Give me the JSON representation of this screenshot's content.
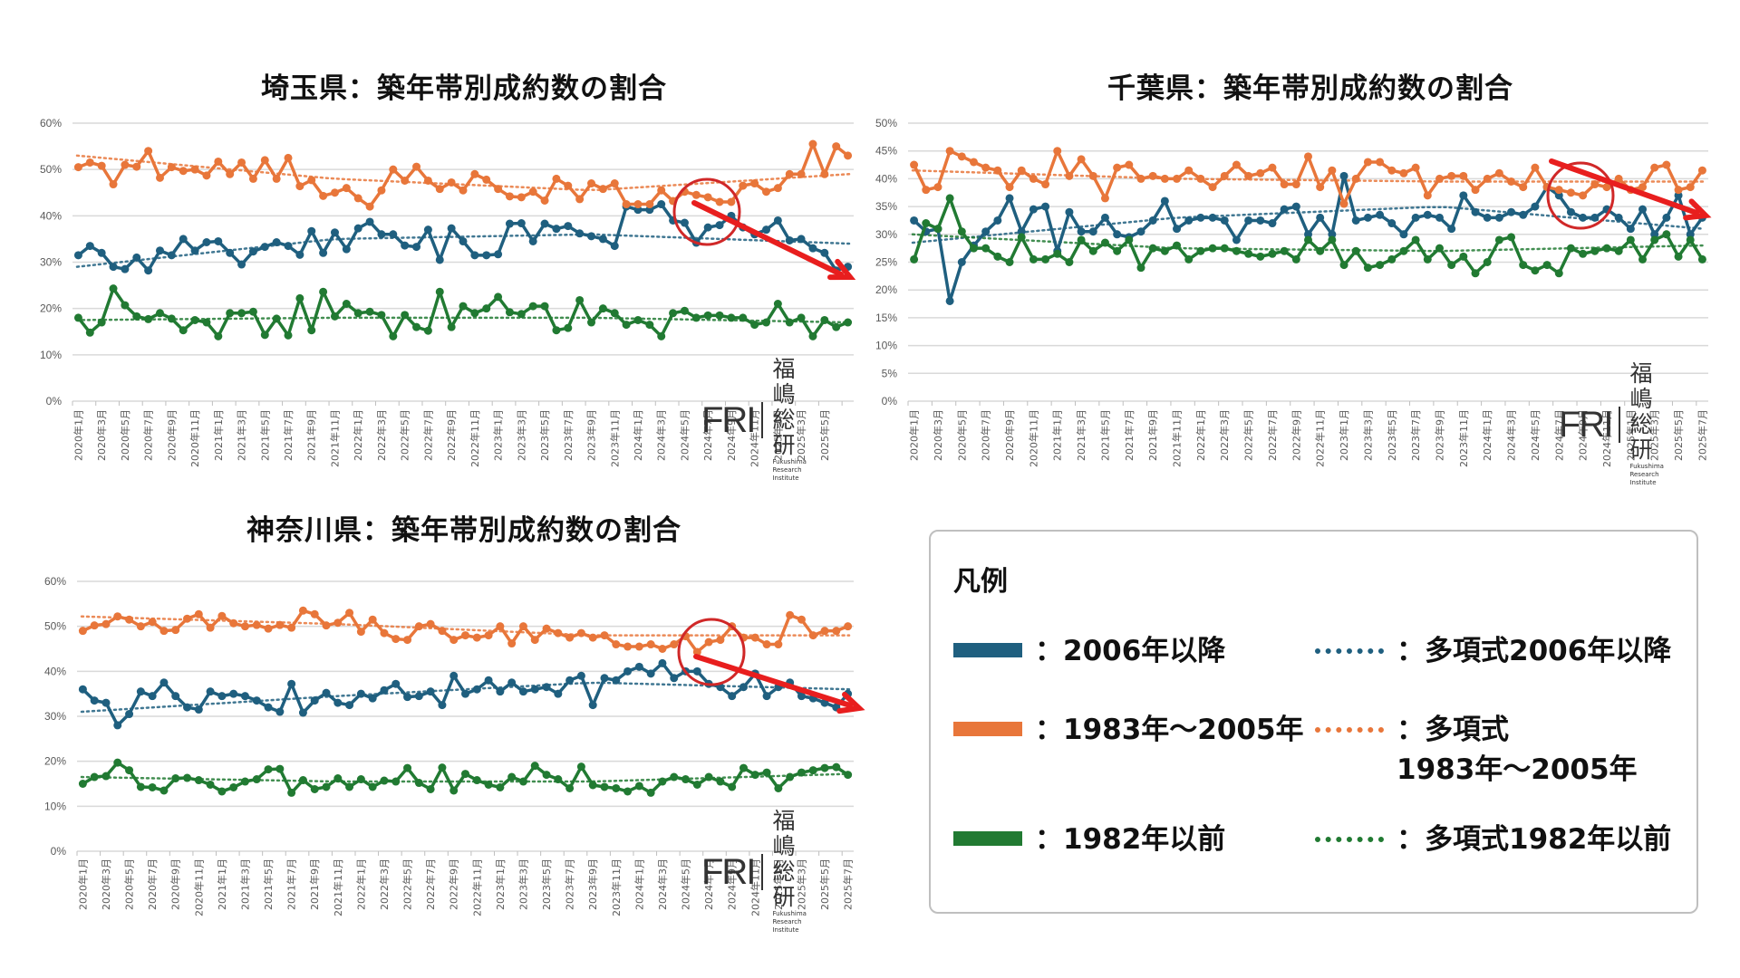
{
  "legend": {
    "title": "凡例",
    "items": [
      {
        "label": "：2006年以降",
        "color": "#1f5f7f",
        "style": "solid"
      },
      {
        "label": "：多項式2006年以降",
        "color": "#1f5f7f",
        "style": "dotted"
      },
      {
        "label": "：1983年～2005年",
        "color": "#e8763a",
        "style": "solid"
      },
      {
        "label": "：多項式\n1983年～2005年",
        "color": "#e8763a",
        "style": "dotted"
      },
      {
        "label": "：1982年以前",
        "color": "#217a32",
        "style": "solid"
      },
      {
        "label": "：多項式1982年以前",
        "color": "#217a32",
        "style": "dotted"
      }
    ]
  },
  "logo": {
    "mark": "FRI",
    "jp": "福嶋総研",
    "en": "Fukushima Research Institute"
  },
  "colors": {
    "post2006": "#1f5f7f",
    "y1983_2005": "#e8763a",
    "pre1982": "#217a32",
    "annotation": "#e02020",
    "grid": "#d9d9d9"
  },
  "chart_data": [
    {
      "type": "line",
      "title": "埼玉県：築年帯別成約数の割合",
      "xlabel": "",
      "ylabel": "",
      "ylim": [
        0,
        0.6
      ],
      "yticks": [
        "0%",
        "10%",
        "20%",
        "30%",
        "40%",
        "50%",
        "60%"
      ],
      "x_start": "2020年1月",
      "x_tick_labels": [
        "2020年1月",
        "2020年3月",
        "2020年5月",
        "2020年7月",
        "2020年9月",
        "2020年11月",
        "2021年1月",
        "2021年3月",
        "2021年5月",
        "2021年7月",
        "2021年9月",
        "2021年11月",
        "2022年1月",
        "2022年3月",
        "2022年5月",
        "2022年7月",
        "2022年9月",
        "2022年11月",
        "2023年1月",
        "2023年3月",
        "2023年5月",
        "2023年7月",
        "2023年9月",
        "2023年11月",
        "2024年1月",
        "2024年3月",
        "2024年5月",
        "2024年7月",
        "2024年9月",
        "2024年11月",
        "2025年1月",
        "2025年3月",
        "2025年5月"
      ],
      "grid": true,
      "trendlines": "polynomial",
      "annotation": "red circle around 2024年5月–7月 with downward red arrow on 2006年以降 series",
      "series": [
        {
          "name": "2006年以降",
          "values": [
            0.315,
            0.335,
            0.32,
            0.29,
            0.285,
            0.31,
            0.282,
            0.325,
            0.315,
            0.35,
            0.325,
            0.343,
            0.345,
            0.32,
            0.295,
            0.323,
            0.333,
            0.343,
            0.335,
            0.316,
            0.367,
            0.32,
            0.364,
            0.328,
            0.373,
            0.387,
            0.36,
            0.36,
            0.336,
            0.333,
            0.37,
            0.305,
            0.373,
            0.345,
            0.315,
            0.315,
            0.317,
            0.383,
            0.384,
            0.345,
            0.383,
            0.372,
            0.378,
            0.362,
            0.356,
            0.35,
            0.335,
            0.42,
            0.413,
            0.413,
            0.425,
            0.39,
            0.385,
            0.342,
            0.375,
            0.38,
            0.4,
            0.375,
            0.36,
            0.37,
            0.39,
            0.347,
            0.35,
            0.33,
            0.32,
            0.282,
            0.29
          ]
        },
        {
          "name": "1983年～2005年",
          "values": [
            0.505,
            0.515,
            0.508,
            0.468,
            0.51,
            0.506,
            0.54,
            0.482,
            0.505,
            0.497,
            0.5,
            0.487,
            0.517,
            0.49,
            0.515,
            0.48,
            0.52,
            0.48,
            0.525,
            0.464,
            0.477,
            0.443,
            0.45,
            0.46,
            0.438,
            0.42,
            0.455,
            0.5,
            0.476,
            0.506,
            0.476,
            0.458,
            0.472,
            0.455,
            0.49,
            0.478,
            0.458,
            0.442,
            0.44,
            0.452,
            0.433,
            0.48,
            0.465,
            0.436,
            0.47,
            0.458,
            0.47,
            0.425,
            0.425,
            0.425,
            0.455,
            0.432,
            0.452,
            0.445,
            0.44,
            0.43,
            0.43,
            0.465,
            0.47,
            0.452,
            0.46,
            0.49,
            0.49,
            0.555,
            0.49,
            0.55,
            0.53
          ]
        },
        {
          "name": "1982年以前",
          "values": [
            0.18,
            0.148,
            0.17,
            0.243,
            0.207,
            0.183,
            0.177,
            0.19,
            0.178,
            0.153,
            0.175,
            0.17,
            0.14,
            0.19,
            0.19,
            0.193,
            0.143,
            0.178,
            0.142,
            0.222,
            0.153,
            0.236,
            0.183,
            0.21,
            0.19,
            0.193,
            0.186,
            0.14,
            0.186,
            0.16,
            0.152,
            0.236,
            0.16,
            0.205,
            0.19,
            0.2,
            0.225,
            0.192,
            0.188,
            0.205,
            0.205,
            0.153,
            0.158,
            0.218,
            0.17,
            0.2,
            0.19,
            0.165,
            0.175,
            0.165,
            0.14,
            0.19,
            0.195,
            0.18,
            0.185,
            0.185,
            0.18,
            0.18,
            0.165,
            0.17,
            0.21,
            0.17,
            0.18,
            0.14,
            0.175,
            0.16,
            0.17
          ]
        },
        {
          "name": "多項式2006年以降",
          "trend": [
            0.29,
            0.35,
            0.36,
            0.34
          ]
        },
        {
          "name": "多項式1983年～2005年",
          "trend": [
            0.53,
            0.48,
            0.455,
            0.49
          ]
        },
        {
          "name": "多項式1982年以前",
          "trend": [
            0.175,
            0.18,
            0.18,
            0.17
          ]
        }
      ]
    },
    {
      "type": "line",
      "title": "千葉県：築年帯別成約数の割合",
      "xlabel": "",
      "ylabel": "",
      "ylim": [
        0,
        0.5
      ],
      "yticks": [
        "0%",
        "5%",
        "10%",
        "15%",
        "20%",
        "25%",
        "30%",
        "35%",
        "40%",
        "45%",
        "50%"
      ],
      "x_start": "2020年1月",
      "x_tick_labels": [
        "2020年1月",
        "2020年3月",
        "2020年5月",
        "2020年7月",
        "2020年9月",
        "2020年11月",
        "2021年1月",
        "2021年3月",
        "2021年5月",
        "2021年7月",
        "2021年9月",
        "2021年11月",
        "2022年1月",
        "2022年3月",
        "2022年5月",
        "2022年7月",
        "2022年9月",
        "2022年11月",
        "2023年1月",
        "2023年3月",
        "2023年5月",
        "2023年7月",
        "2023年9月",
        "2023年11月",
        "2024年1月",
        "2024年3月",
        "2024年5月",
        "2024年7月",
        "2024年9月",
        "2024年11月",
        "2025年1月",
        "2025年3月",
        "2025年5月",
        "2025年7月"
      ],
      "grid": true,
      "trendlines": "polynomial",
      "annotation": "red circle around 2024年7月–9月 with downward red arrow on 2006年以降 series",
      "series": [
        {
          "name": "2006年以降",
          "values": [
            0.325,
            0.305,
            0.31,
            0.18,
            0.25,
            0.28,
            0.305,
            0.325,
            0.365,
            0.305,
            0.345,
            0.35,
            0.27,
            0.34,
            0.305,
            0.305,
            0.33,
            0.3,
            0.295,
            0.305,
            0.325,
            0.36,
            0.31,
            0.325,
            0.33,
            0.33,
            0.325,
            0.29,
            0.325,
            0.325,
            0.32,
            0.345,
            0.35,
            0.3,
            0.33,
            0.3,
            0.405,
            0.325,
            0.33,
            0.335,
            0.32,
            0.3,
            0.33,
            0.335,
            0.33,
            0.31,
            0.37,
            0.34,
            0.33,
            0.33,
            0.34,
            0.335,
            0.35,
            0.385,
            0.37,
            0.34,
            0.33,
            0.33,
            0.345,
            0.33,
            0.31,
            0.345,
            0.3,
            0.33,
            0.37,
            0.3,
            0.33
          ]
        },
        {
          "name": "1983年～2005年",
          "values": [
            0.425,
            0.38,
            0.385,
            0.45,
            0.44,
            0.43,
            0.42,
            0.415,
            0.385,
            0.415,
            0.4,
            0.39,
            0.45,
            0.405,
            0.435,
            0.405,
            0.365,
            0.42,
            0.425,
            0.4,
            0.405,
            0.4,
            0.4,
            0.415,
            0.4,
            0.385,
            0.405,
            0.425,
            0.405,
            0.41,
            0.42,
            0.39,
            0.39,
            0.44,
            0.385,
            0.415,
            0.355,
            0.4,
            0.43,
            0.43,
            0.415,
            0.41,
            0.42,
            0.37,
            0.4,
            0.405,
            0.405,
            0.38,
            0.4,
            0.41,
            0.395,
            0.385,
            0.42,
            0.385,
            0.38,
            0.375,
            0.37,
            0.39,
            0.385,
            0.4,
            0.38,
            0.385,
            0.42,
            0.425,
            0.38,
            0.385,
            0.415
          ]
        },
        {
          "name": "1982年以前",
          "values": [
            0.255,
            0.32,
            0.31,
            0.365,
            0.305,
            0.275,
            0.275,
            0.26,
            0.25,
            0.295,
            0.255,
            0.255,
            0.265,
            0.25,
            0.29,
            0.27,
            0.285,
            0.27,
            0.29,
            0.24,
            0.275,
            0.27,
            0.28,
            0.255,
            0.27,
            0.275,
            0.275,
            0.27,
            0.265,
            0.26,
            0.265,
            0.27,
            0.255,
            0.29,
            0.27,
            0.29,
            0.245,
            0.27,
            0.24,
            0.245,
            0.255,
            0.27,
            0.29,
            0.255,
            0.275,
            0.245,
            0.26,
            0.23,
            0.25,
            0.29,
            0.295,
            0.245,
            0.235,
            0.245,
            0.23,
            0.275,
            0.265,
            0.27,
            0.275,
            0.27,
            0.29,
            0.255,
            0.29,
            0.3,
            0.26,
            0.29,
            0.255
          ]
        },
        {
          "name": "多項式2006年以降",
          "trend": [
            0.285,
            0.33,
            0.35,
            0.31
          ]
        },
        {
          "name": "多項式1983年～2005年",
          "trend": [
            0.415,
            0.4,
            0.395,
            0.395
          ]
        },
        {
          "name": "多項式1982年以前",
          "trend": [
            0.3,
            0.275,
            0.27,
            0.28
          ]
        }
      ]
    },
    {
      "type": "line",
      "title": "神奈川県：築年帯別成約数の割合",
      "xlabel": "",
      "ylabel": "",
      "ylim": [
        0,
        0.6
      ],
      "yticks": [
        "0%",
        "10%",
        "20%",
        "30%",
        "40%",
        "50%",
        "60%"
      ],
      "x_start": "2020年1月",
      "x_tick_labels": [
        "2020年1月",
        "2020年3月",
        "2020年5月",
        "2020年7月",
        "2020年9月",
        "2020年11月",
        "2021年1月",
        "2021年3月",
        "2021年5月",
        "2021年7月",
        "2021年9月",
        "2021年11月",
        "2022年1月",
        "2022年3月",
        "2022年5月",
        "2022年7月",
        "2022年9月",
        "2022年11月",
        "2023年1月",
        "2023年3月",
        "2023年5月",
        "2023年7月",
        "2023年9月",
        "2023年11月",
        "2024年1月",
        "2024年3月",
        "2024年5月",
        "2024年7月",
        "2024年9月",
        "2024年11月",
        "2025年1月",
        "2025年3月",
        "2025年5月",
        "2025年7月"
      ],
      "grid": true,
      "trendlines": "polynomial",
      "annotation": "red circle around 2024年7月–9月 with downward red arrow on 2006年以降 series",
      "series": [
        {
          "name": "2006年以降",
          "values": [
            0.36,
            0.335,
            0.33,
            0.28,
            0.305,
            0.355,
            0.345,
            0.375,
            0.345,
            0.32,
            0.315,
            0.355,
            0.345,
            0.35,
            0.345,
            0.335,
            0.32,
            0.31,
            0.372,
            0.308,
            0.335,
            0.352,
            0.33,
            0.325,
            0.35,
            0.34,
            0.358,
            0.372,
            0.343,
            0.345,
            0.355,
            0.325,
            0.39,
            0.35,
            0.36,
            0.38,
            0.355,
            0.375,
            0.355,
            0.36,
            0.365,
            0.35,
            0.38,
            0.39,
            0.325,
            0.385,
            0.38,
            0.4,
            0.41,
            0.395,
            0.418,
            0.385,
            0.4,
            0.4,
            0.372,
            0.365,
            0.345,
            0.365,
            0.395,
            0.345,
            0.365,
            0.375,
            0.345,
            0.34,
            0.33,
            0.32,
            0.35
          ]
        },
        {
          "name": "1983年～2005年",
          "values": [
            0.49,
            0.502,
            0.505,
            0.522,
            0.515,
            0.5,
            0.51,
            0.49,
            0.492,
            0.517,
            0.527,
            0.497,
            0.523,
            0.507,
            0.5,
            0.503,
            0.495,
            0.503,
            0.497,
            0.535,
            0.527,
            0.502,
            0.508,
            0.53,
            0.488,
            0.515,
            0.485,
            0.472,
            0.47,
            0.5,
            0.505,
            0.49,
            0.47,
            0.48,
            0.475,
            0.48,
            0.5,
            0.462,
            0.5,
            0.47,
            0.495,
            0.485,
            0.475,
            0.485,
            0.475,
            0.48,
            0.46,
            0.455,
            0.455,
            0.46,
            0.45,
            0.46,
            0.478,
            0.443,
            0.465,
            0.47,
            0.5,
            0.475,
            0.475,
            0.46,
            0.46,
            0.525,
            0.515,
            0.48,
            0.49,
            0.49,
            0.5
          ]
        },
        {
          "name": "1982年以前",
          "values": [
            0.15,
            0.165,
            0.167,
            0.197,
            0.18,
            0.143,
            0.142,
            0.135,
            0.162,
            0.163,
            0.158,
            0.148,
            0.133,
            0.142,
            0.155,
            0.16,
            0.182,
            0.183,
            0.13,
            0.158,
            0.138,
            0.143,
            0.162,
            0.143,
            0.16,
            0.143,
            0.157,
            0.155,
            0.185,
            0.152,
            0.138,
            0.186,
            0.135,
            0.172,
            0.158,
            0.148,
            0.142,
            0.165,
            0.155,
            0.19,
            0.17,
            0.16,
            0.14,
            0.188,
            0.147,
            0.143,
            0.14,
            0.133,
            0.145,
            0.13,
            0.155,
            0.165,
            0.16,
            0.148,
            0.165,
            0.155,
            0.143,
            0.185,
            0.17,
            0.175,
            0.14,
            0.165,
            0.175,
            0.18,
            0.185,
            0.187,
            0.17
          ]
        },
        {
          "name": "多項式2006年以降",
          "trend": [
            0.31,
            0.345,
            0.375,
            0.36
          ]
        },
        {
          "name": "多項式1983年～2005年",
          "trend": [
            0.522,
            0.505,
            0.48,
            0.48
          ]
        },
        {
          "name": "多項式1982年以前",
          "trend": [
            0.165,
            0.155,
            0.155,
            0.172
          ]
        }
      ]
    }
  ]
}
